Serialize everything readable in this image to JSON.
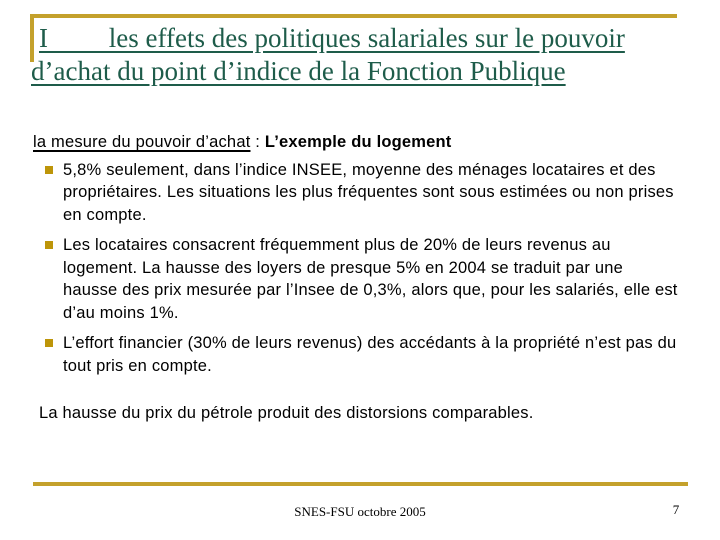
{
  "title": {
    "line1": "I         les effets des politiques salariales sur le pouvoir",
    "line2": "d’achat du point d’indice de la Fonction Publique"
  },
  "body": {
    "intro": {
      "underlined": "la mesure du pouvoir d’achat",
      "separator": " : ",
      "bold": "L’exemple du logement"
    },
    "bullets": [
      {
        "text": "5,8% seulement, dans l’indice INSEE, moyenne des ménages locataires et des propriétaires. Les situations les plus fréquentes sont sous estimées ou non prises en compte."
      },
      {
        "text": "Les locataires consacrent fréquemment plus de 20% de leurs revenus au logement. La hausse des loyers de presque 5% en 2004 se traduit par une hausse des prix mesurée par l’Insee de 0,3%, alors que, pour les salariés, elle est d’au moins 1%."
      },
      {
        "text": "L’effort financier (30% de leurs revenus) des accédants à la propriété n’est pas du tout pris en compte."
      }
    ],
    "closing": "La hausse du prix du pétrole produit des distorsions comparables."
  },
  "footer": {
    "text": "SNES-FSU octobre 2005",
    "page_number": "7"
  },
  "colors": {
    "accent_gold": "#C4A12C",
    "bullet_gold": "#BD9509",
    "title_green": "#1E5C4A",
    "body_text": "#000000",
    "background": "#FFFFFF"
  }
}
